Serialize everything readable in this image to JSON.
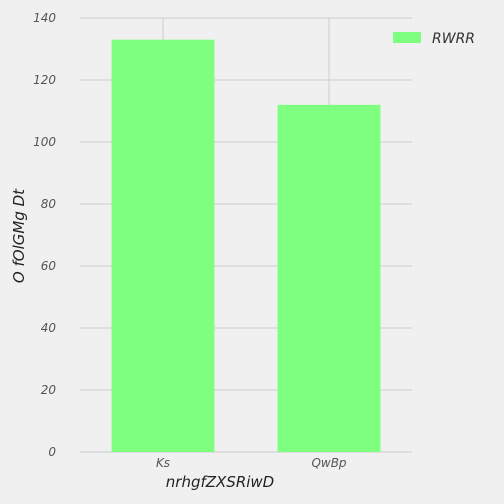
{
  "chart_data": {
    "type": "bar",
    "categories": [
      "Ks",
      "QwBp"
    ],
    "series": [
      {
        "name": "RWRR",
        "values": [
          133,
          112
        ],
        "color": "#7fff7f"
      }
    ],
    "xlabel": "nrhgfZXSRiwD",
    "ylabel": "O fOlGMg Dt",
    "ylim": [
      0,
      140
    ],
    "yticks": [
      0,
      20,
      40,
      60,
      80,
      100,
      120,
      140
    ],
    "grid": true,
    "legend_position": "top-right",
    "background_color": "#f0f0f0",
    "grid_color": "#cccccc"
  }
}
